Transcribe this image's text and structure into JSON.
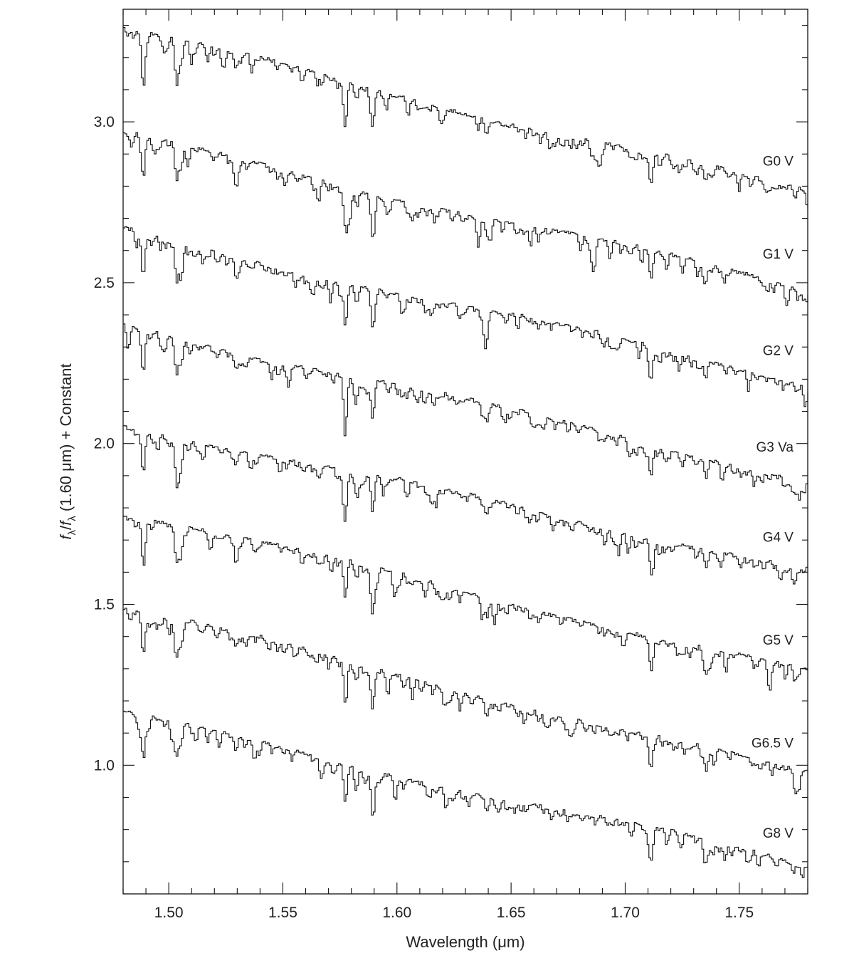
{
  "chart_data": {
    "type": "line",
    "title": "",
    "xlabel": "Wavelength (μm)",
    "ylabel": {
      "f": "f",
      "lambda": "λ",
      "rest": " (1.60 μm) + Constant",
      "slash": "/"
    },
    "xlim": [
      1.48,
      1.78
    ],
    "ylim": [
      0.6,
      3.35
    ],
    "x_ticks": [
      {
        "value": 1.5,
        "label": "1.50"
      },
      {
        "value": 1.55,
        "label": "1.55"
      },
      {
        "value": 1.6,
        "label": "1.60"
      },
      {
        "value": 1.65,
        "label": "1.65"
      },
      {
        "value": 1.7,
        "label": "1.70"
      },
      {
        "value": 1.75,
        "label": "1.75"
      }
    ],
    "x_minor_step": 0.01,
    "y_ticks": [
      {
        "value": 1.0,
        "label": "1.0"
      },
      {
        "value": 1.5,
        "label": "1.5"
      },
      {
        "value": 2.0,
        "label": "2.0"
      },
      {
        "value": 2.5,
        "label": "2.5"
      },
      {
        "value": 3.0,
        "label": "3.0"
      }
    ],
    "y_minor_step": 0.1,
    "grid": false,
    "legend": "none",
    "absorption_features": [
      {
        "x": 1.4885,
        "depth": 0.13
      },
      {
        "x": 1.503,
        "depth": 0.11
      },
      {
        "x": 1.505,
        "depth": 0.07
      },
      {
        "x": 1.529,
        "depth": 0.05
      },
      {
        "x": 1.577,
        "depth": 0.12
      },
      {
        "x": 1.582,
        "depth": 0.05
      },
      {
        "x": 1.589,
        "depth": 0.12
      },
      {
        "x": 1.639,
        "depth": 0.05
      },
      {
        "x": 1.711,
        "depth": 0.09
      },
      {
        "x": 1.735,
        "depth": 0.05
      }
    ],
    "series": [
      {
        "name": "G0 V",
        "start": 3.29,
        "end": 2.78,
        "label_y": 2.88
      },
      {
        "name": "G1 V",
        "start": 2.96,
        "end": 2.48,
        "label_y": 2.59
      },
      {
        "name": "G2 V",
        "start": 2.66,
        "end": 2.19,
        "label_y": 2.29
      },
      {
        "name": "G3 Va",
        "start": 2.37,
        "end": 1.89,
        "label_y": 1.99
      },
      {
        "name": "G4 V",
        "start": 2.06,
        "end": 1.61,
        "label_y": 1.71
      },
      {
        "name": "G5 V",
        "start": 1.79,
        "end": 1.29,
        "label_y": 1.39
      },
      {
        "name": "G6.5 V",
        "start": 1.49,
        "end": 0.97,
        "label_y": 1.07
      },
      {
        "name": "G8 V",
        "start": 1.16,
        "end": 0.69,
        "label_y": 0.79
      }
    ]
  }
}
